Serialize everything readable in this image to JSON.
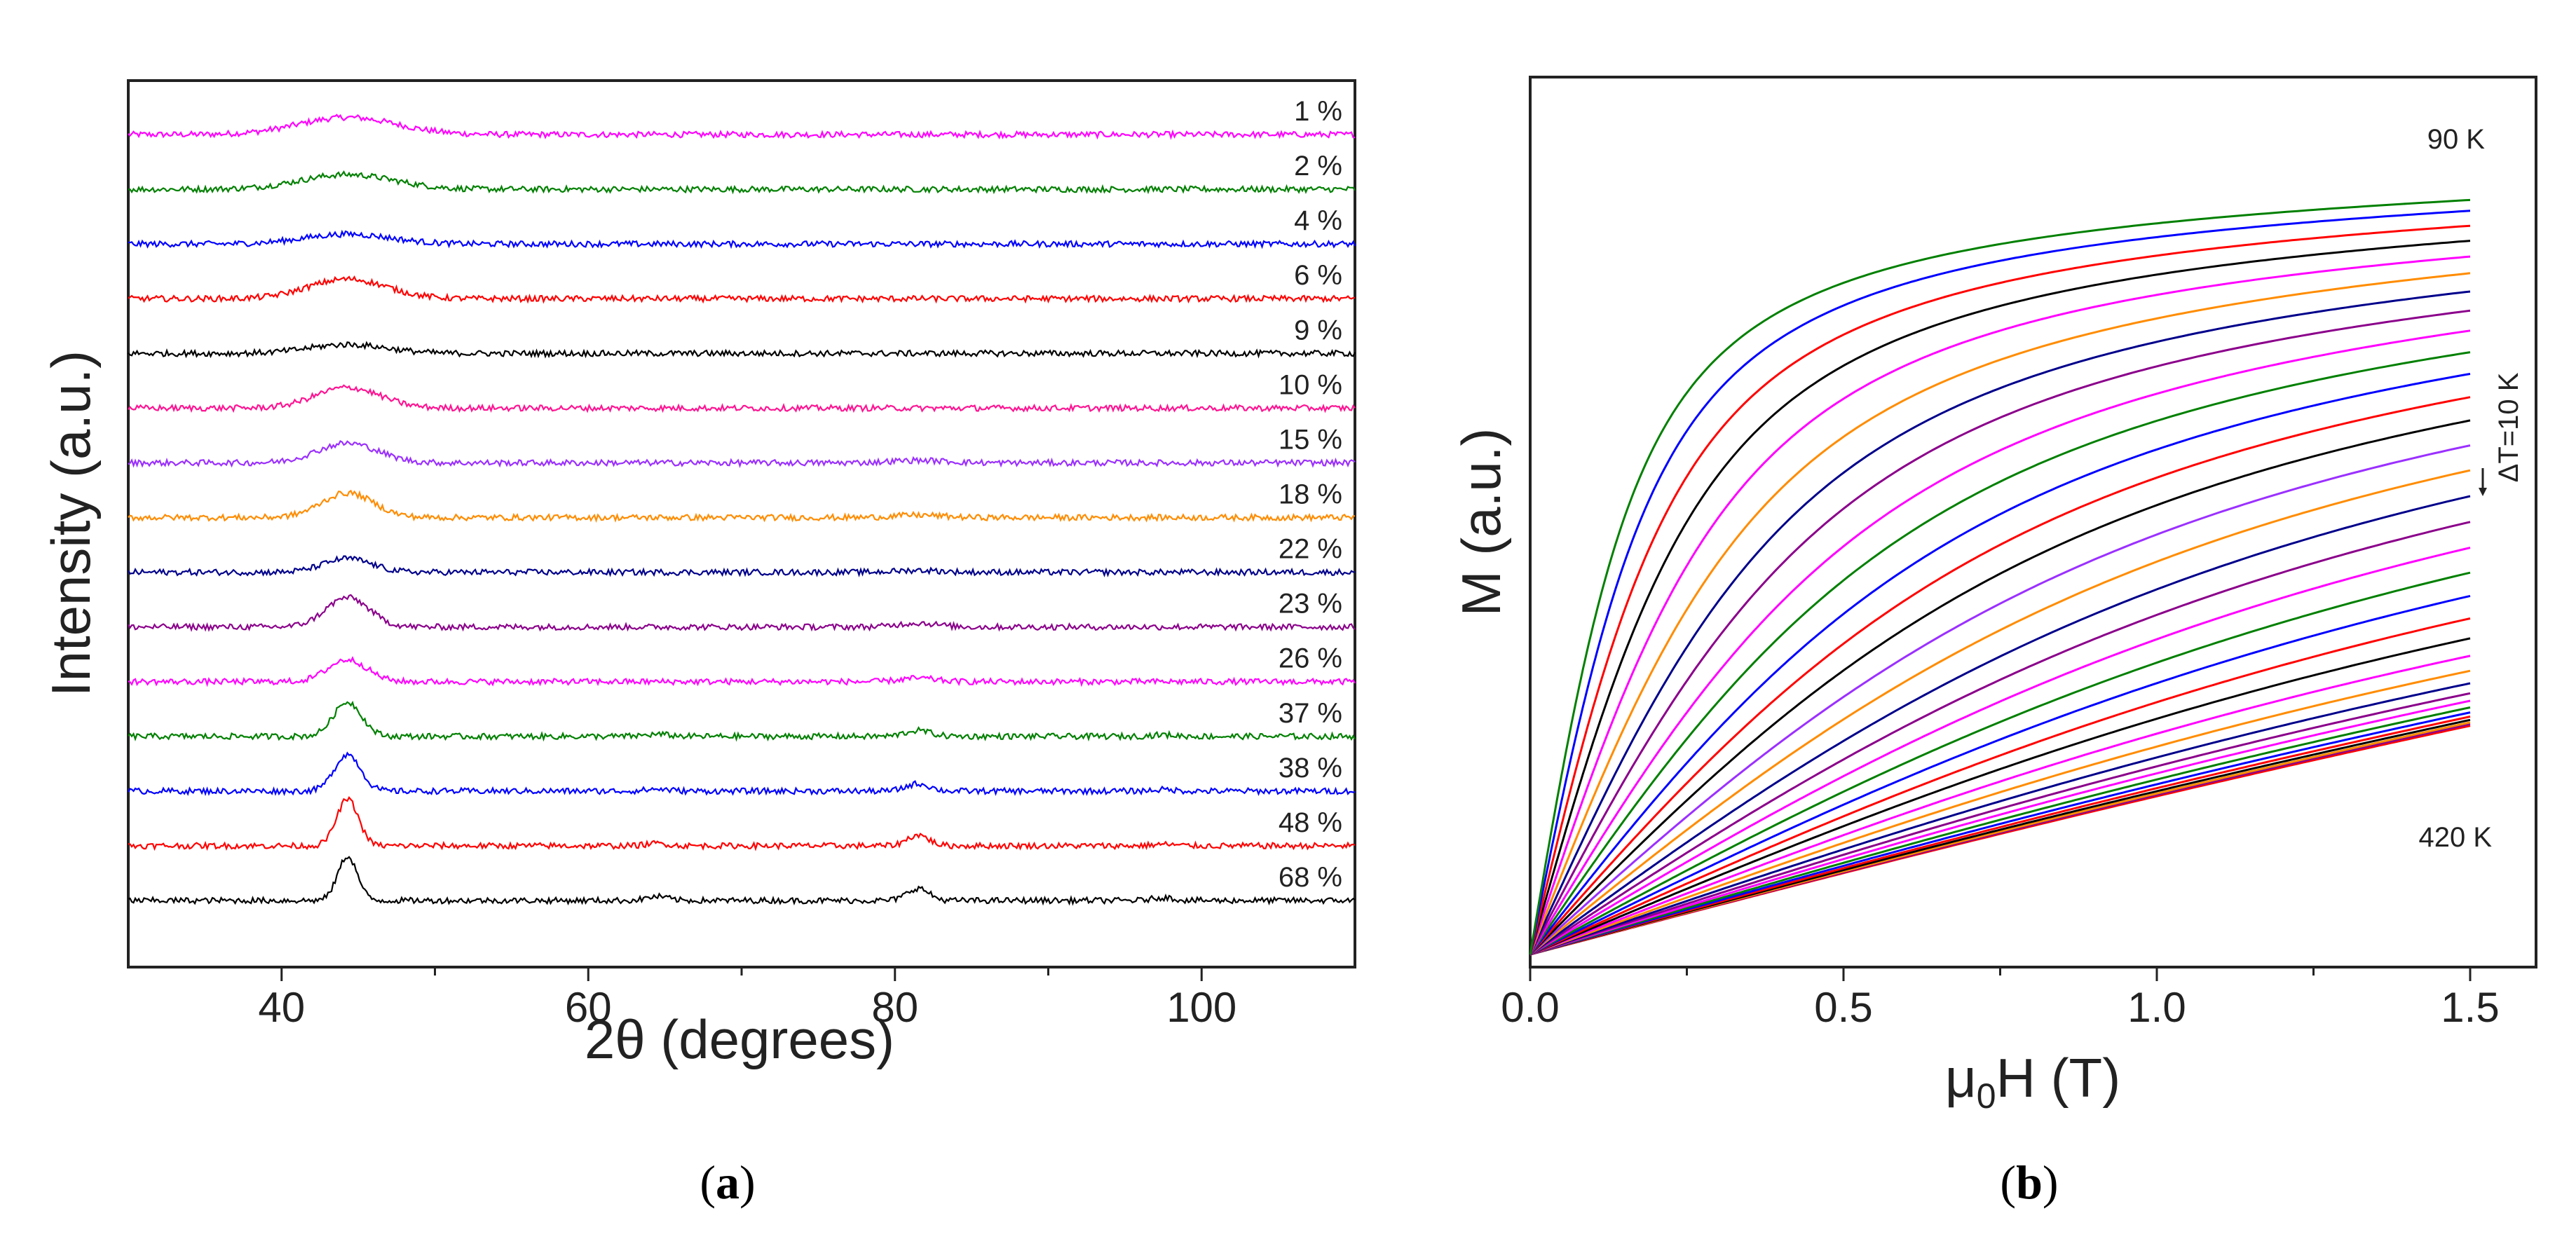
{
  "chart_data": [
    {
      "type": "line",
      "panel": "a",
      "caption": {
        "open": "(",
        "letter": "a",
        "close": ")"
      },
      "xlabel": "2θ (degrees)",
      "ylabel": "Intensity (a.u.)",
      "xlim": [
        30,
        110
      ],
      "xticks": [
        40,
        60,
        80,
        100
      ],
      "yticks": [],
      "offset_step": 1.0,
      "peaks_2theta": [
        44.3,
        64.5,
        81.5,
        97.5
      ],
      "series": [
        {
          "name": "1 %",
          "color": "#ff00ff",
          "peak_heights": [
            0.35,
            0.0,
            0.0,
            0.0
          ],
          "peak_width": 4.5
        },
        {
          "name": "2 %",
          "color": "#008000",
          "peak_heights": [
            0.3,
            0.0,
            0.0,
            0.0
          ],
          "peak_width": 4.3
        },
        {
          "name": "4 %",
          "color": "#0000ff",
          "peak_heights": [
            0.2,
            0.0,
            0.0,
            0.0
          ],
          "peak_width": 4.0
        },
        {
          "name": "6 %",
          "color": "#ff0000",
          "peak_heights": [
            0.4,
            0.0,
            0.0,
            0.0
          ],
          "peak_width": 3.6
        },
        {
          "name": "9 %",
          "color": "#000000",
          "peak_heights": [
            0.18,
            0.0,
            0.0,
            0.0
          ],
          "peak_width": 3.6
        },
        {
          "name": "10 %",
          "color": "#ff1493",
          "peak_heights": [
            0.42,
            0.0,
            0.0,
            0.0
          ],
          "peak_width": 3.0
        },
        {
          "name": "15 %",
          "color": "#9b30ff",
          "peak_heights": [
            0.4,
            0.0,
            0.05,
            0.0
          ],
          "peak_width": 2.8
        },
        {
          "name": "18 %",
          "color": "#ff8c00",
          "peak_heights": [
            0.5,
            0.0,
            0.05,
            0.0
          ],
          "peak_width": 2.4
        },
        {
          "name": "22 %",
          "color": "#00008b",
          "peak_heights": [
            0.28,
            0.0,
            0.04,
            0.0
          ],
          "peak_width": 2.2
        },
        {
          "name": "23 %",
          "color": "#8b008b",
          "peak_heights": [
            0.6,
            0.0,
            0.08,
            0.0
          ],
          "peak_width": 2.0
        },
        {
          "name": "26 %",
          "color": "#ff00ff",
          "peak_heights": [
            0.45,
            0.0,
            0.07,
            0.0
          ],
          "peak_width": 1.8
        },
        {
          "name": "37 %",
          "color": "#008000",
          "peak_heights": [
            0.7,
            0.04,
            0.12,
            0.03
          ],
          "peak_width": 1.3
        },
        {
          "name": "38 %",
          "color": "#0000ff",
          "peak_heights": [
            0.75,
            0.04,
            0.15,
            0.03
          ],
          "peak_width": 1.2
        },
        {
          "name": "48 %",
          "color": "#ff0000",
          "peak_heights": [
            0.95,
            0.05,
            0.22,
            0.03
          ],
          "peak_width": 1.0
        },
        {
          "name": "68 %",
          "color": "#000000",
          "peak_heights": [
            0.9,
            0.08,
            0.25,
            0.06
          ],
          "peak_width": 0.9
        }
      ]
    },
    {
      "type": "line",
      "panel": "b",
      "caption": {
        "open": "(",
        "letter": "b",
        "close": ")"
      },
      "xlabel_main": "μ",
      "xlabel_sub": "0",
      "xlabel_rest": "H (T)",
      "ylabel": "M (a.u.)",
      "xlim": [
        0,
        1.65
      ],
      "xticks": [
        0.0,
        0.5,
        1.0,
        1.5
      ],
      "xtick_labels": [
        "0.0",
        "0.5",
        "1.0",
        "1.5"
      ],
      "ylim": [
        0,
        1.0
      ],
      "yticks": [],
      "annotations": {
        "top": "90 K",
        "bottom": "420 K",
        "step": "ΔT=10 K"
      },
      "temperatures_K": [
        90,
        100,
        110,
        120,
        130,
        140,
        150,
        160,
        170,
        180,
        190,
        200,
        210,
        220,
        230,
        240,
        250,
        260,
        270,
        280,
        290,
        300,
        310,
        320,
        330,
        340,
        350,
        360,
        370,
        380,
        390,
        400,
        410,
        420
      ],
      "colors": [
        "#008000",
        "#0000ff",
        "#ff0000",
        "#000000",
        "#ff00ff",
        "#ff8c00",
        "#00008b",
        "#8b008b",
        "#ff00ff",
        "#008000",
        "#0000ff",
        "#ff0000",
        "#000000",
        "#9b30ff",
        "#ff8c00",
        "#00008b",
        "#8b008b",
        "#ff00ff",
        "#008000",
        "#0000ff",
        "#ff0000",
        "#000000",
        "#ff00ff",
        "#ff8c00",
        "#00008b",
        "#8b008b",
        "#ff00ff",
        "#008000",
        "#0000ff",
        "#ff0000",
        "#000000",
        "#ff8c00",
        "#8b008b",
        "#ff0000"
      ],
      "M_at_1_5T": [
        0.907,
        0.894,
        0.876,
        0.858,
        0.839,
        0.819,
        0.797,
        0.774,
        0.75,
        0.724,
        0.698,
        0.67,
        0.642,
        0.612,
        0.582,
        0.551,
        0.52,
        0.489,
        0.459,
        0.431,
        0.404,
        0.38,
        0.359,
        0.341,
        0.326,
        0.314,
        0.305,
        0.297,
        0.291,
        0.286,
        0.282,
        0.279,
        0.277,
        0.275
      ],
      "field_scale_T": [
        0.07,
        0.082,
        0.097,
        0.114,
        0.133,
        0.154,
        0.177,
        0.202,
        0.229,
        0.258,
        0.289,
        0.322,
        0.356,
        0.392,
        0.429,
        0.467,
        0.505,
        0.542,
        0.578,
        0.612,
        0.642,
        0.668,
        0.689,
        0.705,
        0.716,
        0.722,
        0.724,
        0.724,
        0.724,
        0.724,
        0.724,
        0.724,
        0.724,
        0.724
      ],
      "linear_fraction": [
        0.02,
        0.02,
        0.02,
        0.02,
        0.02,
        0.03,
        0.03,
        0.03,
        0.04,
        0.04,
        0.05,
        0.05,
        0.05,
        0.06,
        0.06,
        0.07,
        0.07,
        0.07,
        0.08,
        0.08,
        0.08,
        0.08,
        0.1,
        0.13,
        0.17,
        0.22,
        0.28,
        0.34,
        0.4,
        0.45,
        0.49,
        0.52,
        0.54,
        0.55
      ]
    }
  ]
}
